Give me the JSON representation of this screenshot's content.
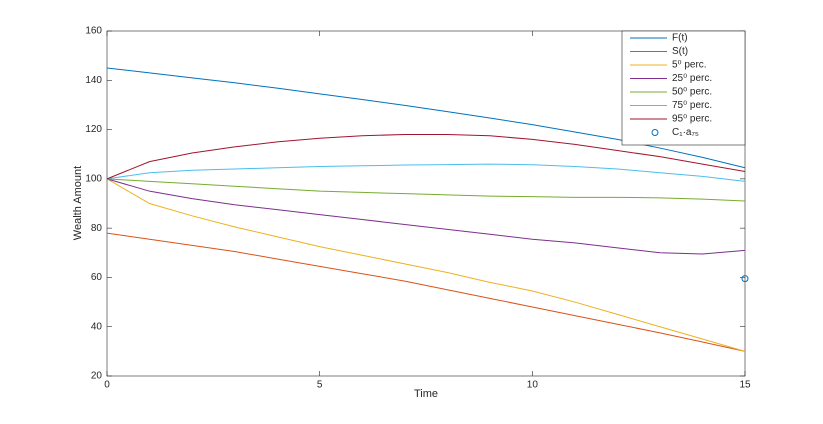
{
  "chart_data": {
    "type": "line",
    "xlabel": "Time",
    "ylabel": "Wealth Amount",
    "xlim": [
      0,
      15
    ],
    "ylim": [
      20,
      160
    ],
    "xticks": [
      0,
      5,
      10,
      15
    ],
    "yticks": [
      20,
      40,
      60,
      80,
      100,
      120,
      140,
      160
    ],
    "legend": "upper right",
    "x": [
      0,
      1,
      2,
      3,
      4,
      5,
      6,
      7,
      8,
      9,
      10,
      11,
      12,
      13,
      14,
      15
    ],
    "series": [
      {
        "name": "F(t)",
        "color": "#0072BD",
        "values": [
          145,
          143,
          141,
          139,
          136.8,
          134.5,
          132.2,
          129.8,
          127.3,
          124.7,
          122,
          119,
          116,
          112.5,
          108.7,
          104.5
        ]
      },
      {
        "name": "S(t)",
        "color": "#D95319",
        "values": [
          78,
          75.5,
          73,
          70.5,
          67.5,
          64.5,
          61.5,
          58.5,
          55,
          51.5,
          48,
          44.5,
          41,
          37.5,
          33.8,
          30
        ]
      },
      {
        "name": "5⁰ perc.",
        "color": "#EDB120",
        "values": [
          100,
          90,
          85,
          80.5,
          76.5,
          72.5,
          69,
          65.5,
          62,
          58,
          54.5,
          50,
          45,
          40,
          35,
          30
        ]
      },
      {
        "name": "25⁰ perc.",
        "color": "#7E2F8E",
        "values": [
          100,
          95,
          92,
          89.5,
          87.5,
          85.5,
          83.5,
          81.5,
          79.5,
          77.5,
          75.5,
          74,
          72,
          70,
          69.5,
          71
        ]
      },
      {
        "name": "50⁰ perc.",
        "color": "#77AC30",
        "values": [
          100,
          99,
          98,
          97,
          96,
          95,
          94.5,
          94,
          93.5,
          93,
          92.8,
          92.5,
          92.5,
          92.3,
          91.8,
          91
        ]
      },
      {
        "name": "75⁰ perc.",
        "color": "#4DBEEE",
        "values": [
          100,
          102.5,
          103.5,
          104,
          104.5,
          105,
          105.3,
          105.6,
          105.8,
          106,
          105.7,
          105,
          104,
          102.5,
          101,
          99
        ]
      },
      {
        "name": "95⁰ perc.",
        "color": "#A2142F",
        "values": [
          100,
          107,
          110.5,
          113,
          115,
          116.5,
          117.5,
          118,
          118,
          117.5,
          116,
          114,
          111.5,
          109,
          106,
          103
        ]
      }
    ],
    "point": {
      "name": "C₁·a₇₅",
      "color": "#0072BD",
      "x": 15,
      "y": 59.5
    }
  }
}
